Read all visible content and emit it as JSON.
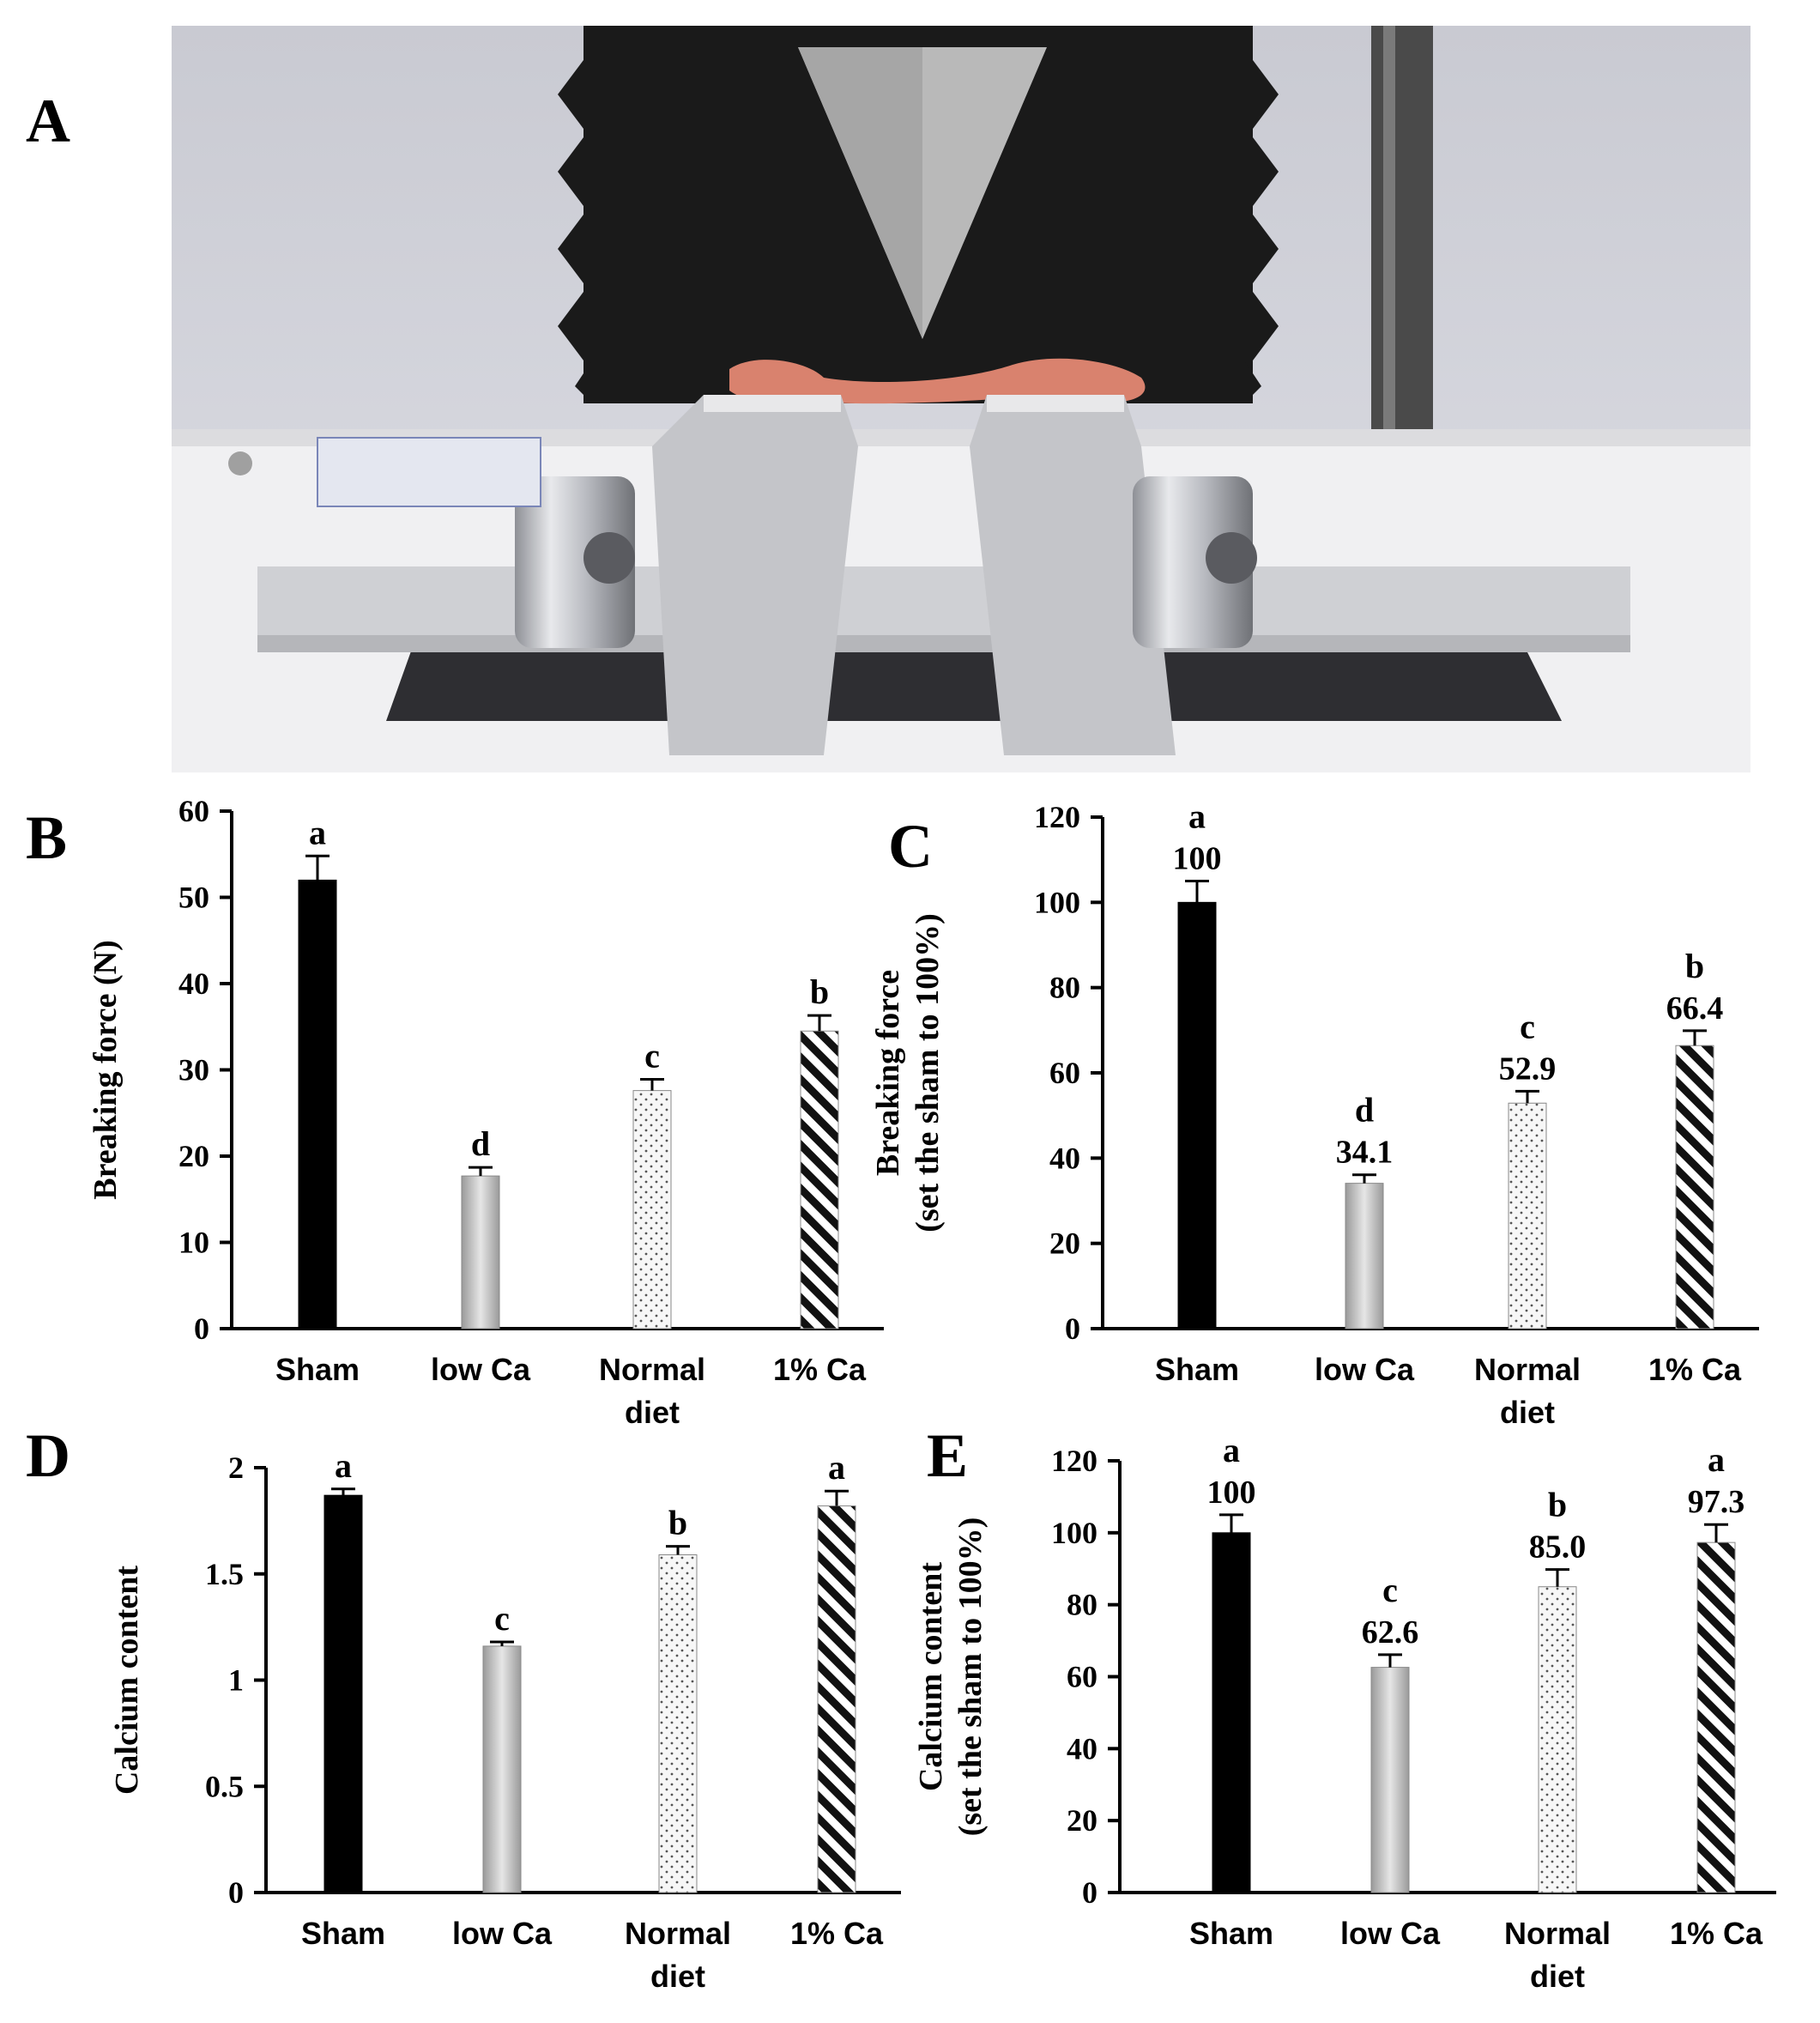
{
  "panels": {
    "A": "A",
    "B": "B",
    "C": "C",
    "D": "D",
    "E": "E"
  },
  "series_styles": [
    {
      "fill": "#000000",
      "pattern": "solid"
    },
    {
      "fill": "#c8c8c8",
      "pattern": "gray-gradient"
    },
    {
      "fill": "#f2f2f2",
      "pattern": "dots"
    },
    {
      "fill": "#ffffff",
      "pattern": "diagonal-hatch"
    }
  ],
  "chart_data": [
    {
      "panel": "B",
      "type": "bar",
      "categories": [
        "Sham",
        "low Ca",
        "Normal diet",
        "1% Ca"
      ],
      "values": [
        52.0,
        17.7,
        27.6,
        34.5
      ],
      "errors": [
        2.8,
        1.0,
        1.3,
        1.8
      ],
      "significance": [
        "a",
        "d",
        "c",
        "b"
      ],
      "value_labels": [],
      "ylabel": "Breaking force (N)",
      "ylim": [
        0,
        60
      ],
      "yticks": [
        0,
        10,
        20,
        30,
        40,
        50,
        60
      ]
    },
    {
      "panel": "C",
      "type": "bar",
      "categories": [
        "Sham",
        "low Ca",
        "Normal diet",
        "1% Ca"
      ],
      "values": [
        100,
        34.1,
        52.9,
        66.4
      ],
      "errors": [
        5.0,
        2.0,
        2.8,
        3.5
      ],
      "significance": [
        "a",
        "d",
        "c",
        "b"
      ],
      "value_labels": [
        "100",
        "34.1",
        "52.9",
        "66.4"
      ],
      "ylabel": "Breaking force (set the sham to 100%)",
      "ylabel_lines": [
        "Breaking force",
        "(set the sham to 100%)"
      ],
      "ylim": [
        0,
        120
      ],
      "yticks": [
        0,
        20,
        40,
        60,
        80,
        100,
        120
      ]
    },
    {
      "panel": "D",
      "type": "bar",
      "categories": [
        "Sham",
        "low Ca",
        "Normal diet",
        "1% Ca"
      ],
      "values": [
        1.87,
        1.16,
        1.59,
        1.82
      ],
      "errors": [
        0.03,
        0.02,
        0.04,
        0.07
      ],
      "significance": [
        "a",
        "c",
        "b",
        "a"
      ],
      "value_labels": [],
      "ylabel": "Calcium content",
      "ylim": [
        0,
        2
      ],
      "yticks": [
        0,
        0.5,
        1,
        1.5,
        2
      ]
    },
    {
      "panel": "E",
      "type": "bar",
      "categories": [
        "Sham",
        "low Ca",
        "Normal diet",
        "1% Ca"
      ],
      "values": [
        100,
        62.6,
        85.0,
        97.3
      ],
      "errors": [
        5.0,
        3.5,
        4.8,
        5.0
      ],
      "significance": [
        "a",
        "c",
        "b",
        "a"
      ],
      "value_labels": [
        "100",
        "62.6",
        "85.0",
        "97.3"
      ],
      "ylabel": "Calcium content (set the sham to 100%)",
      "ylabel_lines": [
        "Calcium content",
        "(set the sham to 100%)"
      ],
      "ylim": [
        0,
        120
      ],
      "yticks": [
        0,
        20,
        40,
        60,
        80,
        100,
        120
      ]
    }
  ]
}
